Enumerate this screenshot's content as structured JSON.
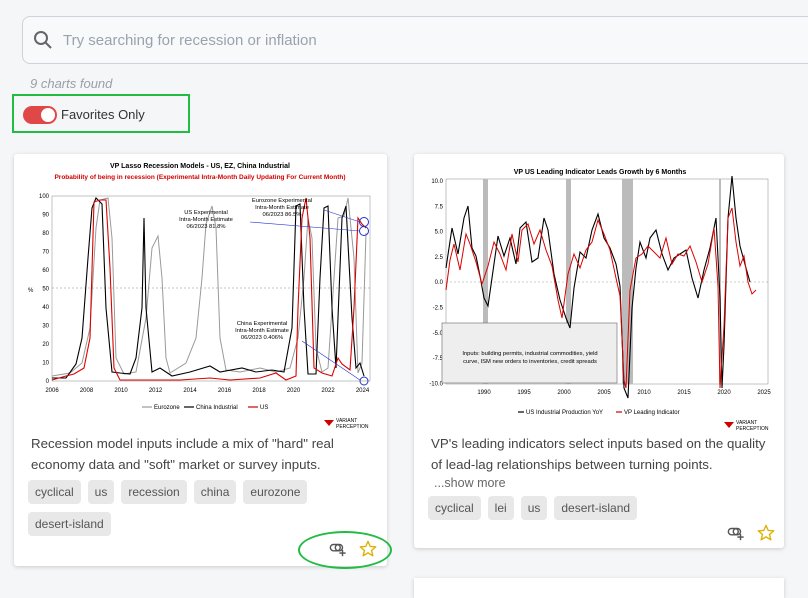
{
  "search": {
    "placeholder": "Try searching for recession or inflation"
  },
  "results": {
    "count_text": "9 charts found"
  },
  "favorites_toggle": {
    "label": "Favorites Only",
    "on": true
  },
  "cards": [
    {
      "chart": {
        "title": "VP Lasso Recession Models - US, EZ, China Industrial",
        "subtitle": "Probability of being in recession (Experimental Intra-Month Daily Updating For Current Month)",
        "ylabel": "%",
        "y_ticks": [
          "0",
          "10",
          "20",
          "30",
          "40",
          "50",
          "60",
          "70",
          "80",
          "90",
          "100"
        ],
        "x_ticks": [
          "2006",
          "2008",
          "2010",
          "2012",
          "2014",
          "2016",
          "2018",
          "2020",
          "2022",
          "2024"
        ],
        "annotations": [
          "Eurozone Experimental",
          "Intra-Month Estimate",
          "06/2023 86.5%",
          "US Experimental",
          "Intra-Month Estimate",
          "06/2023 81.8%",
          "China Experimental",
          "Intra-Month Estimate",
          "06/2023 0.406%"
        ],
        "legend": [
          "Eurozone",
          "China Industrial",
          "US"
        ],
        "brand_line1": "VARIANT",
        "brand_line2": "PERCEPTION"
      },
      "description": "Recession model inputs include a mix of \"hard\" real economy data and \"soft\" market or survey inputs.",
      "tags": [
        "cyclical",
        "us",
        "recession",
        "china",
        "eurozone",
        "desert-island"
      ]
    },
    {
      "chart": {
        "title": "VP US Leading Indicator Leads Growth by 6 Months",
        "y_ticks": [
          "10.0",
          "7.5",
          "5.0",
          "2.5",
          "0.0",
          "-2.5",
          "-5.0",
          "-7.5",
          "-10.0"
        ],
        "x_ticks": [
          "1990",
          "1995",
          "2000",
          "2005",
          "2010",
          "2015",
          "2020",
          "2025"
        ],
        "inset_line1": "Inputs: building permits, industrial commodities, yield",
        "inset_line2": "curve, ISM new orders to inventories, credit spreads",
        "legend": [
          "US Industrial Production YoY",
          "VP Leading Indicator"
        ],
        "brand_line1": "VARIANT",
        "brand_line2": "PERCEPTION"
      },
      "description": "VP's leading indicators select inputs based on the quality of lead-lag relationships between turning points.",
      "more_label": "...show more",
      "tags": [
        "cyclical",
        "lei",
        "us",
        "desert-island"
      ]
    }
  ],
  "colors": {
    "toggle_on": "#e04848",
    "highlight": "#22bb44",
    "series_red": "#dd0000",
    "series_black": "#000000",
    "series_gray": "#999999",
    "star": "#f0c000"
  }
}
